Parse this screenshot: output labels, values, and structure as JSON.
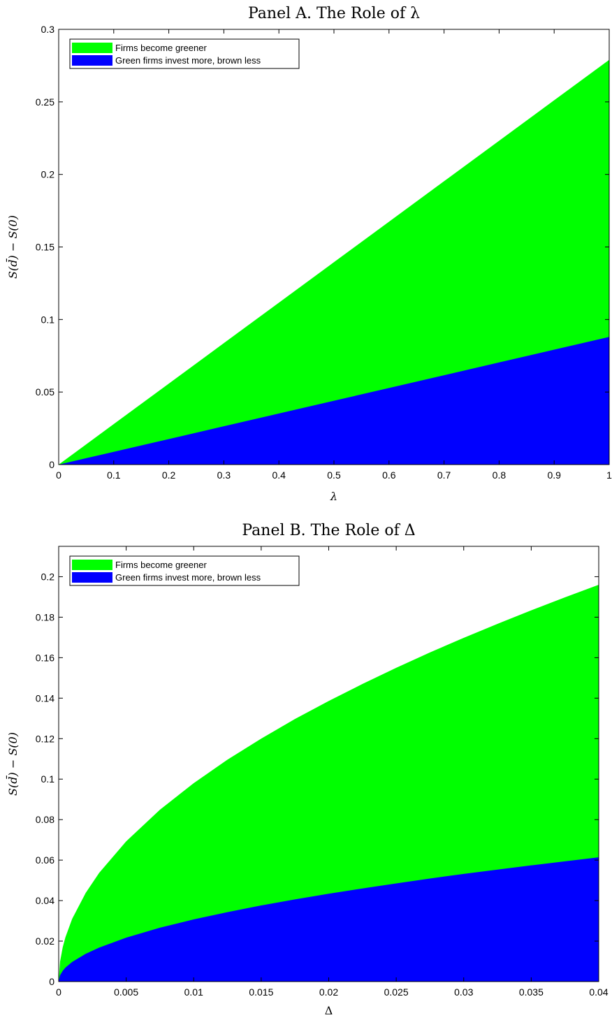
{
  "chart_data": [
    {
      "type": "area",
      "title": "Panel A. The Role of λ",
      "xlabel": "λ",
      "ylabel": "S(d̄) − S(0)",
      "xlim": [
        0,
        1
      ],
      "ylim": [
        0,
        0.3
      ],
      "xticks": [
        "0",
        "0.1",
        "0.2",
        "0.3",
        "0.4",
        "0.5",
        "0.6",
        "0.7",
        "0.8",
        "0.9",
        "1"
      ],
      "yticks": [
        "0",
        "0.05",
        "0.1",
        "0.15",
        "0.2",
        "0.25",
        "0.3"
      ],
      "legend": "top-left",
      "grid": false,
      "x": [
        0,
        0.1,
        0.2,
        0.3,
        0.4,
        0.5,
        0.6,
        0.7,
        0.8,
        0.9,
        1
      ],
      "series": [
        {
          "name": "Firms become greener",
          "color": "#00ff00",
          "values": [
            0,
            0.0279,
            0.0558,
            0.0837,
            0.1116,
            0.1395,
            0.1674,
            0.1953,
            0.2232,
            0.2511,
            0.279
          ]
        },
        {
          "name": "Green firms invest more, brown less",
          "color": "#0000ff",
          "values": [
            0,
            0.0088,
            0.0176,
            0.0264,
            0.0352,
            0.044,
            0.0528,
            0.0616,
            0.0704,
            0.0792,
            0.088
          ]
        }
      ]
    },
    {
      "type": "area",
      "title": "Panel B. The Role of Δ",
      "xlabel": "Δ",
      "ylabel": "S(d̄) − S(0)",
      "xlim": [
        0,
        0.04
      ],
      "ylim": [
        0,
        0.215
      ],
      "xticks": [
        "0",
        "0.005",
        "0.01",
        "0.015",
        "0.02",
        "0.025",
        "0.03",
        "0.035",
        "0.04"
      ],
      "yticks": [
        "0",
        "0.02",
        "0.04",
        "0.06",
        "0.08",
        "0.1",
        "0.12",
        "0.14",
        "0.16",
        "0.18",
        "0.2"
      ],
      "legend": "top-left",
      "grid": false,
      "x": [
        0,
        0.0001,
        0.0003,
        0.0005,
        0.001,
        0.002,
        0.003,
        0.005,
        0.0075,
        0.01,
        0.0125,
        0.015,
        0.0175,
        0.02,
        0.0225,
        0.025,
        0.0275,
        0.03,
        0.0325,
        0.035,
        0.0375,
        0.04
      ],
      "series": [
        {
          "name": "Firms become greener",
          "color": "#00ff00",
          "values": [
            0,
            0.0098,
            0.017,
            0.0219,
            0.031,
            0.0438,
            0.0537,
            0.0693,
            0.0849,
            0.098,
            0.1096,
            0.12,
            0.1297,
            0.1386,
            0.147,
            0.155,
            0.1626,
            0.1698,
            0.1767,
            0.1834,
            0.1898,
            0.196
          ]
        },
        {
          "name": "Green firms invest more, brown less",
          "color": "#0000ff",
          "values": [
            0,
            0.0031,
            0.0053,
            0.0069,
            0.0097,
            0.0137,
            0.0168,
            0.0217,
            0.0266,
            0.0307,
            0.0343,
            0.0376,
            0.0406,
            0.0434,
            0.046,
            0.0485,
            0.0509,
            0.0532,
            0.0553,
            0.0574,
            0.0594,
            0.0614
          ]
        }
      ]
    }
  ]
}
